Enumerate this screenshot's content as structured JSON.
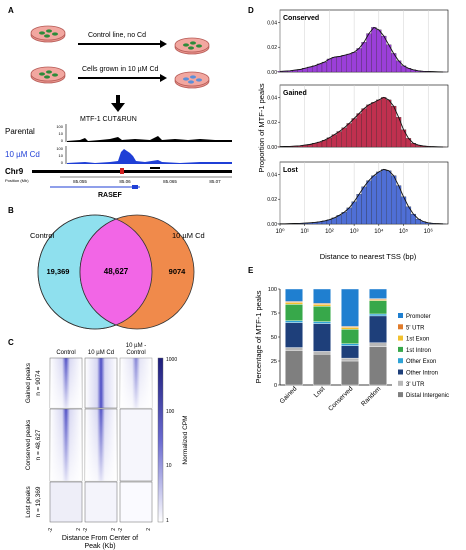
{
  "panels": [
    "A",
    "B",
    "C",
    "D",
    "E"
  ],
  "panelA": {
    "arrow1_label": "Control line, no Cd",
    "arrow2_label": "Cells grown in 10 µM Cd",
    "track_title": "MTF-1 CUT&RUN",
    "track1_name": "Parental",
    "track2_name": "10 µM Cd",
    "track1_ticks": [
      "100",
      "10",
      "0"
    ],
    "track2_ticks": [
      "100",
      "10",
      "0"
    ],
    "chr_label": "Chr9",
    "position_label": "Position (Mb)",
    "positions": [
      "85.055",
      "85.06",
      "85.065",
      "85.07"
    ],
    "gene_label": "RASEF",
    "colors": {
      "dish": "#e8938c",
      "cell_green": "#2e8b3a",
      "cell_blue": "#5b8fd9",
      "cd_track": "#1f3fd6"
    }
  },
  "panelB": {
    "left_label": "Control",
    "right_label": "10 µM Cd",
    "left_only": "19,369",
    "overlap": "48,627",
    "right_only": "9074",
    "colors": {
      "control": "#8fe0ee",
      "cd": "#f08a4b",
      "overlap": "#f266e6"
    }
  },
  "panelC": {
    "columns": [
      "Control",
      "10 µM Cd",
      "10 µM -\nControl"
    ],
    "rows": [
      {
        "label": "Gained peaks",
        "n": "n = 9074"
      },
      {
        "label": "Conserved peaks",
        "n": "n = 48,627"
      },
      {
        "label": "Lost peaks",
        "n": "n = 19,369"
      }
    ],
    "colorbar_ticks": [
      "1000",
      "100",
      "10",
      "1"
    ],
    "colorbar_label": "Normalized CPM",
    "x_tick_left": "-2",
    "x_tick_right": "2",
    "xlabel_line1": "Distance From Center of",
    "xlabel_line2": "Peak (Kb)",
    "heat_color": "#4b4bc4"
  },
  "chart_data": [
    {
      "id": "D",
      "type": "bar",
      "xscale": "log",
      "xlabel": "Distance to nearest TSS (bp)",
      "ylabel": "Proportion of MTF-1 peaks",
      "xticks": [
        "10⁰",
        "10¹",
        "10²",
        "10³",
        "10⁴",
        "10⁵",
        "10⁶"
      ],
      "yticks": [
        "0.00",
        "0.02",
        "0.04"
      ],
      "ylim": [
        0,
        0.05
      ],
      "xlim_log10": [
        0,
        6.8
      ],
      "bin_centers_log10": [
        0.0,
        0.2,
        0.4,
        0.6,
        0.8,
        1.0,
        1.2,
        1.4,
        1.6,
        1.8,
        2.0,
        2.2,
        2.4,
        2.6,
        2.8,
        3.0,
        3.2,
        3.4,
        3.6,
        3.8,
        4.0,
        4.2,
        4.4,
        4.6,
        4.8,
        5.0,
        5.2,
        5.4,
        5.6,
        5.8,
        6.0,
        6.2,
        6.4,
        6.6
      ],
      "series": [
        {
          "name": "Conserved",
          "color": "#9b3fd9",
          "values": [
            0.0005,
            0.0007,
            0.001,
            0.0015,
            0.002,
            0.003,
            0.004,
            0.005,
            0.0065,
            0.008,
            0.0105,
            0.012,
            0.0125,
            0.0135,
            0.0145,
            0.016,
            0.019,
            0.024,
            0.031,
            0.036,
            0.034,
            0.029,
            0.022,
            0.015,
            0.009,
            0.005,
            0.003,
            0.0018,
            0.001,
            0.0006,
            0.0005,
            0.0003,
            0.0002,
            0.0001
          ]
        },
        {
          "name": "Gained",
          "color": "#c0304f",
          "values": [
            0.0003,
            0.0004,
            0.0005,
            0.0007,
            0.001,
            0.0015,
            0.002,
            0.003,
            0.004,
            0.0055,
            0.0075,
            0.01,
            0.0125,
            0.0155,
            0.019,
            0.023,
            0.027,
            0.031,
            0.034,
            0.036,
            0.038,
            0.04,
            0.038,
            0.033,
            0.024,
            0.014,
            0.007,
            0.003,
            0.0015,
            0.0008,
            0.0005,
            0.0003,
            0.0002,
            0.0001
          ]
        },
        {
          "name": "Lost",
          "color": "#4f6fd6",
          "values": [
            0.0002,
            0.0002,
            0.0003,
            0.0004,
            0.0005,
            0.0007,
            0.001,
            0.0013,
            0.0018,
            0.0025,
            0.0035,
            0.005,
            0.007,
            0.0095,
            0.013,
            0.018,
            0.024,
            0.03,
            0.035,
            0.039,
            0.042,
            0.044,
            0.043,
            0.039,
            0.031,
            0.022,
            0.014,
            0.008,
            0.004,
            0.002,
            0.001,
            0.0005,
            0.0003,
            0.0002
          ]
        }
      ]
    },
    {
      "id": "E",
      "type": "bar",
      "stacked": true,
      "ylabel": "Percentage of MTF-1 peaks",
      "yticks": [
        "0",
        "25",
        "50",
        "75",
        "100"
      ],
      "ylim": [
        0,
        100
      ],
      "categories": [
        "Gained",
        "Lost",
        "Conserved",
        "Random"
      ],
      "series": [
        {
          "name": "Distal Intergenic",
          "color": "#7f7f7f",
          "values": [
            36,
            32,
            25,
            40
          ]
        },
        {
          "name": "3' UTR",
          "color": "#b8b8b8",
          "values": [
            3,
            3,
            3,
            4
          ]
        },
        {
          "name": "Other Intron",
          "color": "#1e3f7a",
          "values": [
            26,
            29,
            13,
            28
          ]
        },
        {
          "name": "Other Exon",
          "color": "#2fa3d6",
          "values": [
            2,
            2,
            2,
            2
          ]
        },
        {
          "name": "1st Intron",
          "color": "#37a84a",
          "values": [
            17,
            16,
            15,
            14
          ]
        },
        {
          "name": "1st Exon",
          "color": "#f2c12e",
          "values": [
            2,
            2,
            2,
            1
          ]
        },
        {
          "name": "5' UTR",
          "color": "#e07b2a",
          "values": [
            1,
            1,
            1,
            1
          ]
        },
        {
          "name": "Promoter",
          "color": "#1f7fd0",
          "values": [
            13,
            15,
            39,
            10
          ]
        }
      ],
      "legend_order": [
        "Promoter",
        "5' UTR",
        "1st Exon",
        "1st Intron",
        "Other Exon",
        "Other Intron",
        "3' UTR",
        "Distal Intergenic"
      ]
    }
  ]
}
